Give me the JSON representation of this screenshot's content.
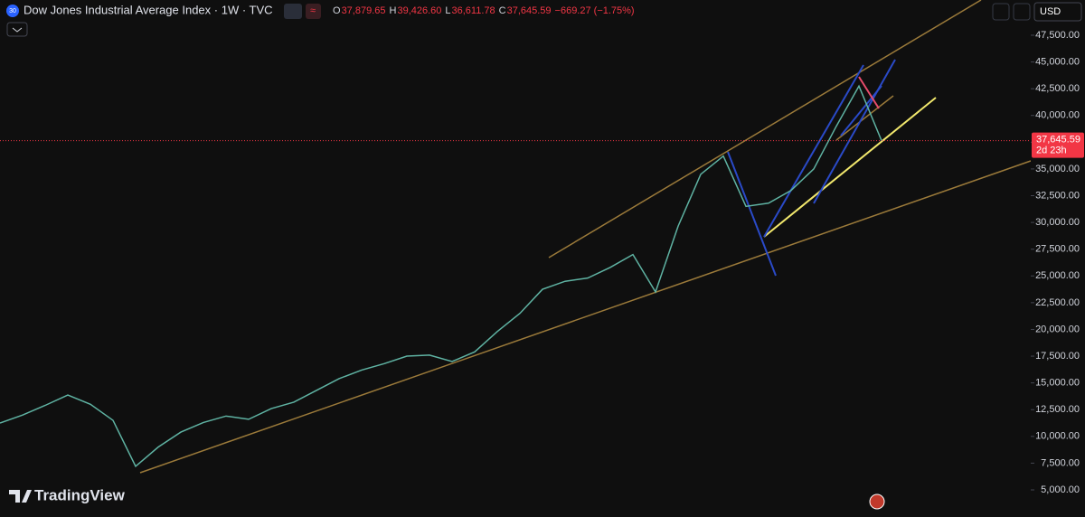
{
  "header": {
    "badge": "30",
    "title": "Dow Jones Industrial Average Index · 1W · TVC",
    "ohlc": [
      {
        "label": "O",
        "value": "37,879.65"
      },
      {
        "label": "H",
        "value": "39,426.60"
      },
      {
        "label": "L",
        "value": "36,611.78"
      },
      {
        "label": "C",
        "value": "37,645.59"
      }
    ],
    "change": "−669.27 (−1.75%)",
    "currency": "USD"
  },
  "chart_data": {
    "type": "line",
    "color": "#5fb3a3",
    "values": [
      11250,
      12000,
      12900,
      13870,
      13000,
      11500,
      7200,
      9000,
      10400,
      11300,
      11900,
      11600,
      12600,
      13200,
      14300,
      15400,
      16200,
      16800,
      17500,
      17600,
      17000,
      17900,
      19800,
      21500,
      23750,
      24500,
      24800,
      25800,
      27000,
      23500,
      29650,
      34500,
      36200,
      31500,
      31800,
      33000,
      35000,
      39000,
      42750,
      37645.59
    ],
    "ylim": [
      2888,
      50793
    ],
    "yticks": [
      {
        "value": 5000,
        "label": "5,000.00"
      },
      {
        "value": 7500,
        "label": "7,500.00"
      },
      {
        "value": 10000,
        "label": "10,000.00"
      },
      {
        "value": 12500,
        "label": "12,500.00"
      },
      {
        "value": 15000,
        "label": "15,000.00"
      },
      {
        "value": 17500,
        "label": "17,500.00"
      },
      {
        "value": 20000,
        "label": "20,000.00"
      },
      {
        "value": 22500,
        "label": "22,500.00"
      },
      {
        "value": 25000,
        "label": "25,000.00"
      },
      {
        "value": 27500,
        "label": "27,500.00"
      },
      {
        "value": 30000,
        "label": "30,000.00"
      },
      {
        "value": 32500,
        "label": "32,500.00"
      },
      {
        "value": 35000,
        "label": "35,000.00"
      },
      {
        "value": 37500,
        "label": "37,500.00"
      },
      {
        "value": 40000,
        "label": "40,000.00"
      },
      {
        "value": 42500,
        "label": "42,500.00"
      },
      {
        "value": 45000,
        "label": "45,000.00"
      },
      {
        "value": 47500,
        "label": "47,500.00"
      }
    ],
    "last_price": {
      "value": 37645.59,
      "label": "37,645.59"
    },
    "countdown": "2d 23h"
  },
  "watermark": "TradingView"
}
